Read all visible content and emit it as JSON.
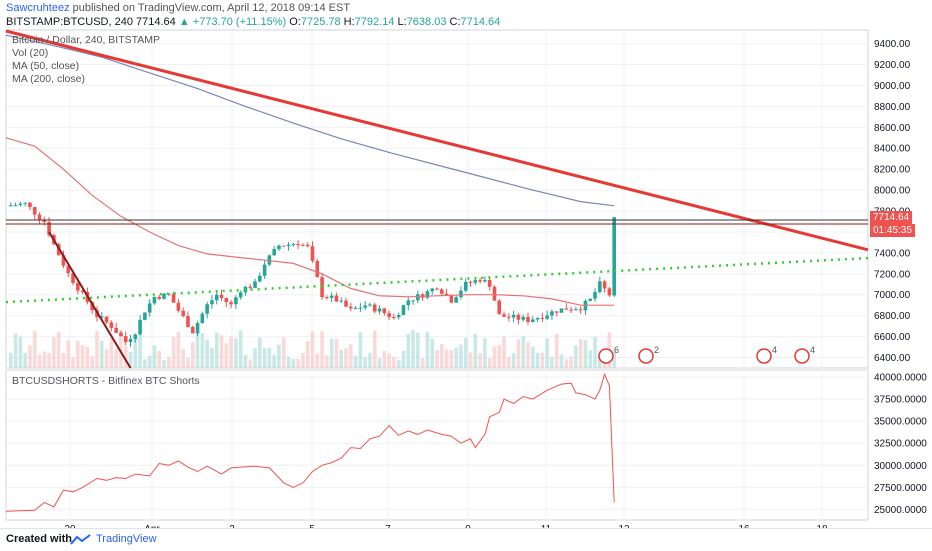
{
  "header": {
    "author": "Sawcruhteez",
    "published_text": "published on TradingView.com, April 12, 2018 09:14 EST",
    "symbol": "BITSTAMP:BTCUSD, 240",
    "last": "7714.64",
    "change": "+773.70 (+11.15%)",
    "o_label": "O:",
    "o": "7725.78",
    "h_label": "H:",
    "h": "7792.14",
    "l_label": "L:",
    "l": "7638.03",
    "c_label": "C:",
    "c": "7714.64"
  },
  "legend": {
    "title": "Bitcoin / Dollar, 240, BITSTAMP",
    "vol": "Vol (20)",
    "ma50": "MA (50, close)",
    "ma200": "MA (200, close)"
  },
  "price_tags": {
    "last": "7714.64",
    "countdown": "01:45:35"
  },
  "oscillator": {
    "title": "BTCUSDSHORTS - Bitfinex BTC Shorts"
  },
  "footer": {
    "created_with": "Created with",
    "brand": "TradingView"
  },
  "event_badges": [
    "6",
    "2",
    "4",
    "4"
  ],
  "colors": {
    "up": "#26a69a",
    "down": "#ef5350",
    "trendline": "#e53935",
    "ma200": "#7b86b8",
    "ma50": "#e57373",
    "support_dotted": "#33cc33"
  },
  "chart_data": [
    {
      "type": "candlestick",
      "x_ticks": [
        "30",
        "Apr",
        "3",
        "5",
        "7",
        "9",
        "11",
        "13",
        "16",
        "18"
      ],
      "y_ticks": [
        "6400.00",
        "6600.00",
        "6800.00",
        "7000.00",
        "7200.00",
        "7400.00",
        "7600.00",
        "7800.00",
        "8000.00",
        "8200.00",
        "8400.00",
        "8600.00",
        "8800.00",
        "9000.00",
        "9200.00",
        "9400.00"
      ],
      "ylim": [
        6300,
        9530
      ],
      "close_path": [
        [
          0,
          7850
        ],
        [
          4,
          7870
        ],
        [
          8,
          7700
        ],
        [
          10,
          7480
        ],
        [
          13,
          7200
        ],
        [
          16,
          7000
        ],
        [
          19,
          6800
        ],
        [
          22,
          6700
        ],
        [
          25,
          6550
        ],
        [
          27,
          6650
        ],
        [
          29,
          6850
        ],
        [
          31,
          6980
        ],
        [
          34,
          7000
        ],
        [
          36,
          6850
        ],
        [
          39,
          6650
        ],
        [
          42,
          6900
        ],
        [
          44,
          7000
        ],
        [
          47,
          6900
        ],
        [
          49,
          7050
        ],
        [
          52,
          7100
        ],
        [
          54,
          7300
        ],
        [
          57,
          7470
        ],
        [
          59,
          7480
        ],
        [
          61,
          7500
        ],
        [
          63,
          7450
        ],
        [
          66,
          7000
        ],
        [
          69,
          6950
        ],
        [
          72,
          6850
        ],
        [
          75,
          6900
        ],
        [
          78,
          6850
        ],
        [
          81,
          6780
        ],
        [
          84,
          6950
        ],
        [
          87,
          7000
        ],
        [
          90,
          7080
        ],
        [
          93,
          6950
        ],
        [
          96,
          7100
        ],
        [
          99,
          7150
        ],
        [
          101,
          7100
        ],
        [
          103,
          6800
        ],
        [
          106,
          6780
        ],
        [
          109,
          6760
        ],
        [
          112,
          6800
        ],
        [
          115,
          6850
        ],
        [
          117,
          6870
        ],
        [
          120,
          6880
        ],
        [
          122,
          6950
        ],
        [
          124,
          7100
        ],
        [
          126,
          7000
        ],
        [
          127,
          7714
        ]
      ],
      "ma200": [
        [
          0,
          9480
        ],
        [
          10,
          9380
        ],
        [
          20,
          9270
        ],
        [
          30,
          9120
        ],
        [
          40,
          8970
        ],
        [
          50,
          8800
        ],
        [
          60,
          8640
        ],
        [
          70,
          8490
        ],
        [
          80,
          8360
        ],
        [
          90,
          8240
        ],
        [
          100,
          8120
        ],
        [
          110,
          8000
        ],
        [
          120,
          7890
        ],
        [
          127,
          7850
        ]
      ],
      "ma50": [
        [
          0,
          8500
        ],
        [
          6,
          8420
        ],
        [
          12,
          8200
        ],
        [
          18,
          7950
        ],
        [
          24,
          7750
        ],
        [
          30,
          7600
        ],
        [
          36,
          7470
        ],
        [
          42,
          7390
        ],
        [
          48,
          7360
        ],
        [
          54,
          7330
        ],
        [
          60,
          7300
        ],
        [
          66,
          7200
        ],
        [
          72,
          7060
        ],
        [
          78,
          6990
        ],
        [
          84,
          6980
        ],
        [
          90,
          6990
        ],
        [
          96,
          7000
        ],
        [
          102,
          7000
        ],
        [
          108,
          6990
        ],
        [
          114,
          6960
        ],
        [
          120,
          6900
        ],
        [
          127,
          6900
        ]
      ],
      "resistance_line": [
        [
          0,
          9520
        ],
        [
          180,
          7430
        ]
      ],
      "support_line": [
        [
          0,
          6930
        ],
        [
          180,
          7350
        ]
      ],
      "horizontal_level": 7714.64
    },
    {
      "type": "line",
      "title": "BTCUSDSHORTS - Bitfinex BTC Shorts",
      "y_ticks": [
        "25000.0000",
        "27500.0000",
        "30000.0000",
        "32500.0000",
        "35000.0000",
        "37500.0000",
        "40000.0000"
      ],
      "ylim": [
        23800,
        40800
      ],
      "values": [
        [
          0,
          24800
        ],
        [
          6,
          24900
        ],
        [
          8,
          25800
        ],
        [
          10,
          25300
        ],
        [
          12,
          27200
        ],
        [
          14,
          27000
        ],
        [
          16,
          27500
        ],
        [
          19,
          28500
        ],
        [
          21,
          28300
        ],
        [
          23,
          28600
        ],
        [
          25,
          28500
        ],
        [
          27,
          29000
        ],
        [
          30,
          28800
        ],
        [
          32,
          30200
        ],
        [
          34,
          30000
        ],
        [
          36,
          30500
        ],
        [
          38,
          29800
        ],
        [
          40,
          29300
        ],
        [
          42,
          29900
        ],
        [
          45,
          29000
        ],
        [
          47,
          29700
        ],
        [
          49,
          29800
        ],
        [
          52,
          29900
        ],
        [
          55,
          29700
        ],
        [
          58,
          28000
        ],
        [
          60,
          27500
        ],
        [
          62,
          28000
        ],
        [
          64,
          29300
        ],
        [
          66,
          30000
        ],
        [
          68,
          30300
        ],
        [
          70,
          30800
        ],
        [
          72,
          32000
        ],
        [
          74,
          31900
        ],
        [
          76,
          33000
        ],
        [
          78,
          33300
        ],
        [
          80,
          34500
        ],
        [
          82,
          33400
        ],
        [
          84,
          33900
        ],
        [
          86,
          33500
        ],
        [
          88,
          34000
        ],
        [
          91,
          33500
        ],
        [
          93,
          33300
        ],
        [
          95,
          32500
        ],
        [
          97,
          33000
        ],
        [
          98,
          32000
        ],
        [
          100,
          33500
        ],
        [
          101,
          35500
        ],
        [
          103,
          36000
        ],
        [
          104,
          37500
        ],
        [
          106,
          37000
        ],
        [
          108,
          37800
        ],
        [
          110,
          37500
        ],
        [
          113,
          38500
        ],
        [
          116,
          39200
        ],
        [
          118,
          39300
        ],
        [
          119,
          38200
        ],
        [
          121,
          38000
        ],
        [
          123,
          37500
        ],
        [
          124,
          38500
        ],
        [
          125,
          40300
        ],
        [
          126,
          39000
        ],
        [
          127,
          25800
        ]
      ]
    }
  ]
}
